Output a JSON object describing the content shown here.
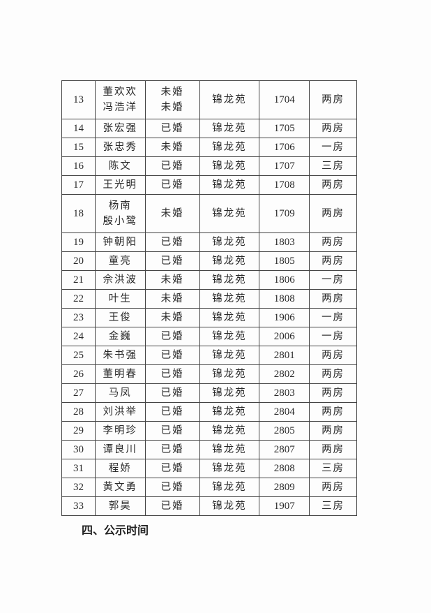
{
  "table": {
    "rows": [
      {
        "no": "13",
        "names": [
          "董欢欢",
          "冯浩洋"
        ],
        "status": [
          "未婚",
          "未婚"
        ],
        "estate": "锦龙苑",
        "room": "1704",
        "type": "两房"
      },
      {
        "no": "14",
        "names": [
          "张宏强"
        ],
        "status": [
          "已婚"
        ],
        "estate": "锦龙苑",
        "room": "1705",
        "type": "两房"
      },
      {
        "no": "15",
        "names": [
          "张忠秀"
        ],
        "status": [
          "未婚"
        ],
        "estate": "锦龙苑",
        "room": "1706",
        "type": "一房"
      },
      {
        "no": "16",
        "names": [
          "陈文"
        ],
        "status": [
          "已婚"
        ],
        "estate": "锦龙苑",
        "room": "1707",
        "type": "三房"
      },
      {
        "no": "17",
        "names": [
          "王光明"
        ],
        "status": [
          "已婚"
        ],
        "estate": "锦龙苑",
        "room": "1708",
        "type": "两房"
      },
      {
        "no": "18",
        "names": [
          "杨南",
          "殷小鹭"
        ],
        "status": [
          "未婚"
        ],
        "estate": "锦龙苑",
        "room": "1709",
        "type": "两房"
      },
      {
        "no": "19",
        "names": [
          "钟朝阳"
        ],
        "status": [
          "已婚"
        ],
        "estate": "锦龙苑",
        "room": "1803",
        "type": "两房"
      },
      {
        "no": "20",
        "names": [
          "童亮"
        ],
        "status": [
          "已婚"
        ],
        "estate": "锦龙苑",
        "room": "1805",
        "type": "两房"
      },
      {
        "no": "21",
        "names": [
          "佘洪波"
        ],
        "status": [
          "未婚"
        ],
        "estate": "锦龙苑",
        "room": "1806",
        "type": "一房"
      },
      {
        "no": "22",
        "names": [
          "叶生"
        ],
        "status": [
          "未婚"
        ],
        "estate": "锦龙苑",
        "room": "1808",
        "type": "两房"
      },
      {
        "no": "23",
        "names": [
          "王俊"
        ],
        "status": [
          "未婚"
        ],
        "estate": "锦龙苑",
        "room": "1906",
        "type": "一房"
      },
      {
        "no": "24",
        "names": [
          "金巍"
        ],
        "status": [
          "已婚"
        ],
        "estate": "锦龙苑",
        "room": "2006",
        "type": "一房"
      },
      {
        "no": "25",
        "names": [
          "朱书强"
        ],
        "status": [
          "已婚"
        ],
        "estate": "锦龙苑",
        "room": "2801",
        "type": "两房"
      },
      {
        "no": "26",
        "names": [
          "董明春"
        ],
        "status": [
          "已婚"
        ],
        "estate": "锦龙苑",
        "room": "2802",
        "type": "两房"
      },
      {
        "no": "27",
        "names": [
          "马凤"
        ],
        "status": [
          "已婚"
        ],
        "estate": "锦龙苑",
        "room": "2803",
        "type": "两房"
      },
      {
        "no": "28",
        "names": [
          "刘洪举"
        ],
        "status": [
          "已婚"
        ],
        "estate": "锦龙苑",
        "room": "2804",
        "type": "两房"
      },
      {
        "no": "29",
        "names": [
          "李明珍"
        ],
        "status": [
          "已婚"
        ],
        "estate": "锦龙苑",
        "room": "2805",
        "type": "两房"
      },
      {
        "no": "30",
        "names": [
          "谭良川"
        ],
        "status": [
          "已婚"
        ],
        "estate": "锦龙苑",
        "room": "2807",
        "type": "两房"
      },
      {
        "no": "31",
        "names": [
          "程娇"
        ],
        "status": [
          "已婚"
        ],
        "estate": "锦龙苑",
        "room": "2808",
        "type": "三房"
      },
      {
        "no": "32",
        "names": [
          "黄文勇"
        ],
        "status": [
          "已婚"
        ],
        "estate": "锦龙苑",
        "room": "2809",
        "type": "两房"
      },
      {
        "no": "33",
        "names": [
          "郭昊"
        ],
        "status": [
          "已婚"
        ],
        "estate": "锦龙苑",
        "room": "1907",
        "type": "三房"
      }
    ]
  },
  "section_heading": "四、公示时间"
}
